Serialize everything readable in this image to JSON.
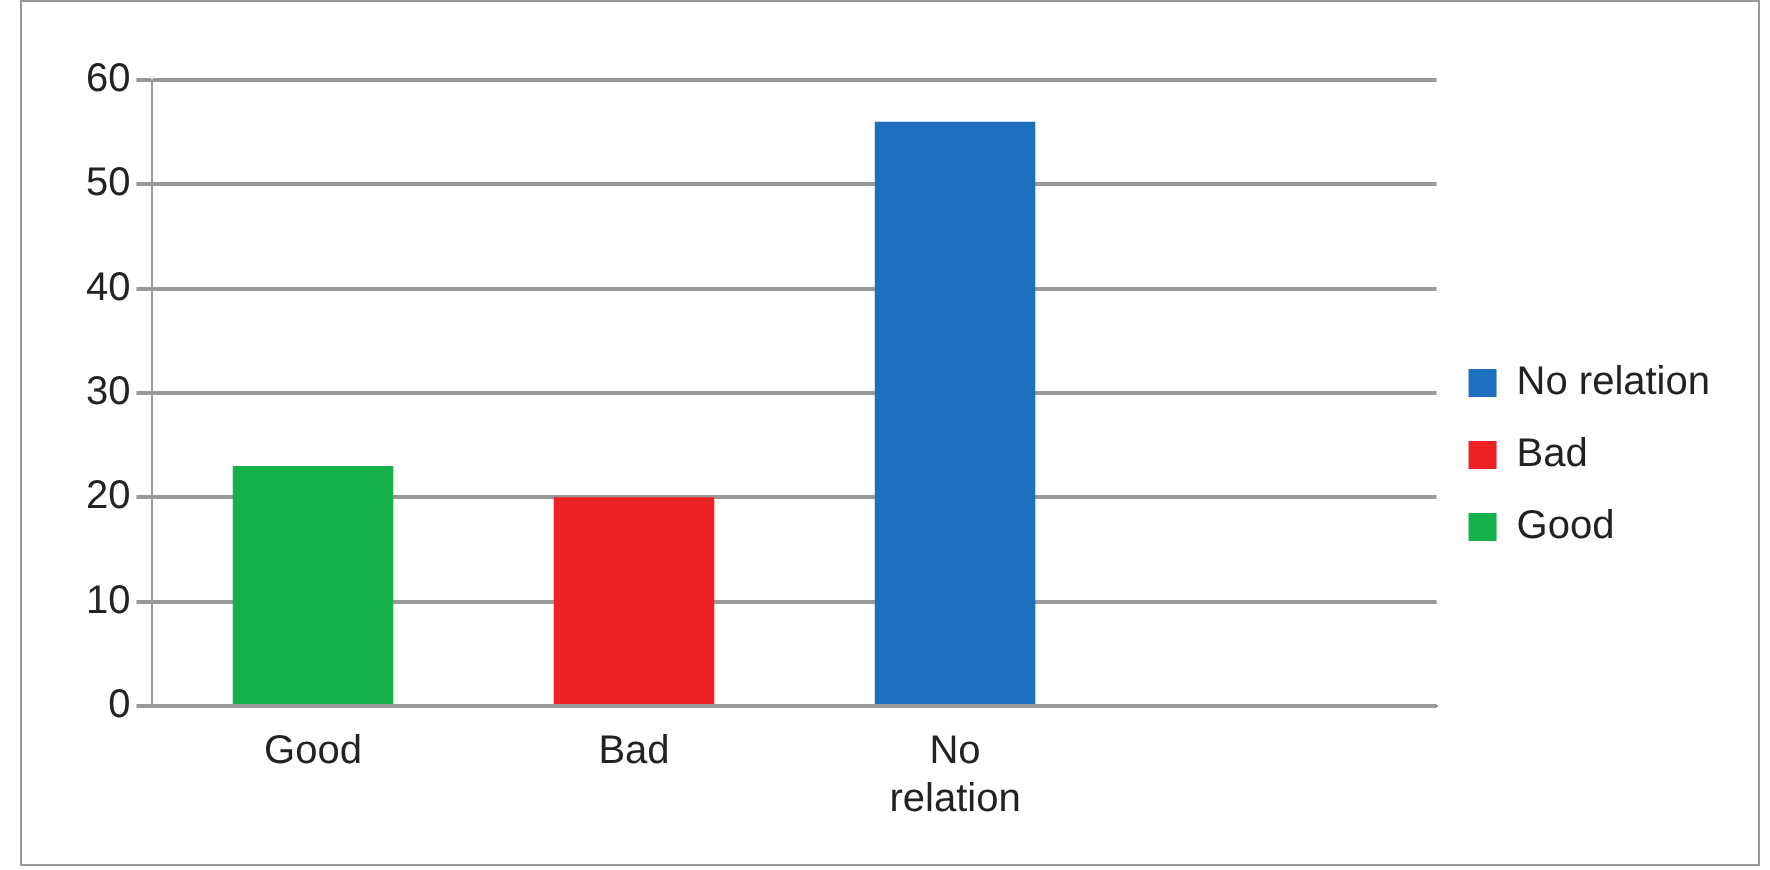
{
  "chart_data": {
    "type": "bar",
    "categories": [
      "Good",
      "Bad",
      "No relation",
      null
    ],
    "series": [
      {
        "name": "Good",
        "color": "#13b04b",
        "values": [
          23,
          null,
          null,
          null
        ]
      },
      {
        "name": "Bad",
        "color": "#ed2024",
        "values": [
          null,
          20,
          null,
          null
        ]
      },
      {
        "name": "No relation",
        "color": "#1f6fbf",
        "values": [
          null,
          null,
          56,
          null
        ]
      }
    ],
    "ylim": [
      0,
      60
    ],
    "yticks": [
      0,
      10,
      20,
      30,
      40,
      50,
      60
    ],
    "grid": "y",
    "legend": "right"
  }
}
